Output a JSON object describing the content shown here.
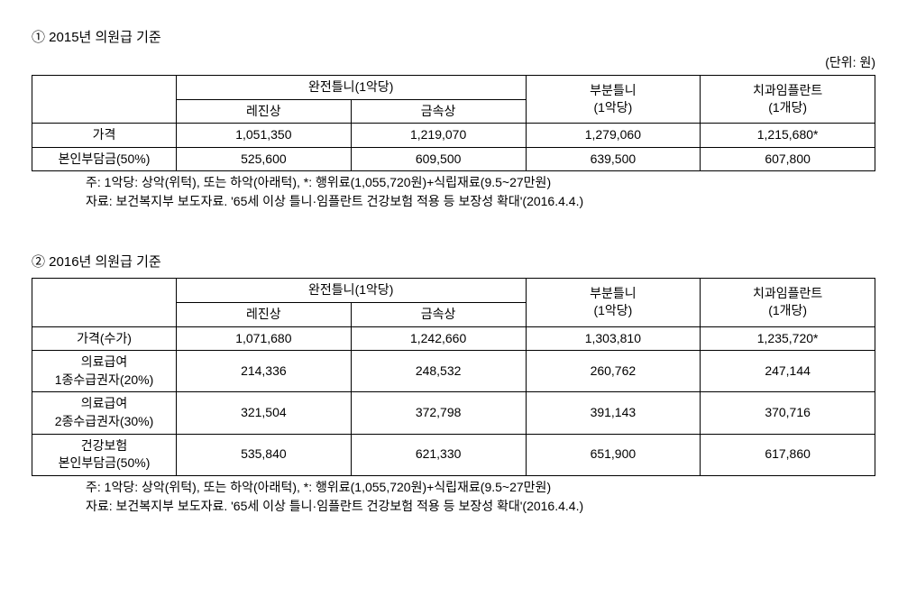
{
  "section1": {
    "title": "① 2015년 의원급 기준",
    "unit": "(단위: 원)",
    "headers": {
      "col_group1": "완전틀니(1악당)",
      "col_sub1": "레진상",
      "col_sub2": "금속상",
      "col2": "부분틀니",
      "col2_sub": "(1악당)",
      "col3": "치과임플란트",
      "col3_sub": "(1개당)"
    },
    "rows": [
      {
        "label": "가격",
        "c1": "1,051,350",
        "c2": "1,219,070",
        "c3": "1,279,060",
        "c4": "1,215,680*"
      },
      {
        "label": "본인부담금(50%)",
        "c1": "525,600",
        "c2": "609,500",
        "c3": "639,500",
        "c4": "607,800"
      }
    ],
    "note": "주: 1악당: 상악(위턱), 또는 하악(아래턱), *: 행위료(1,055,720원)+식립재료(9.5~27만원)",
    "source": "자료: 보건복지부 보도자료. '65세 이상 틀니·임플란트 건강보험 적용 등 보장성 확대'(2016.4.4.)"
  },
  "section2": {
    "title": "② 2016년 의원급 기준",
    "headers": {
      "col_group1": "완전틀니(1악당)",
      "col_sub1": "레진상",
      "col_sub2": "금속상",
      "col2": "부분틀니",
      "col2_sub": "(1악당)",
      "col3": "치과임플란트",
      "col3_sub": "(1개당)"
    },
    "rows": [
      {
        "label": "가격(수가)",
        "c1": "1,071,680",
        "c2": "1,242,660",
        "c3": "1,303,810",
        "c4": "1,235,720*"
      },
      {
        "label": "의료급여\n1종수급권자(20%)",
        "c1": "214,336",
        "c2": "248,532",
        "c3": "260,762",
        "c4": "247,144"
      },
      {
        "label": "의료급여\n2종수급권자(30%)",
        "c1": "321,504",
        "c2": "372,798",
        "c3": "391,143",
        "c4": "370,716"
      },
      {
        "label": "건강보험\n본인부담금(50%)",
        "c1": "535,840",
        "c2": "621,330",
        "c3": "651,900",
        "c4": "617,860"
      }
    ],
    "note": "주: 1악당: 상악(위턱), 또는 하악(아래턱), *: 행위료(1,055,720원)+식립재료(9.5~27만원)",
    "source": "자료: 보건복지부 보도자료. '65세 이상 틀니·임플란트 건강보험 적용 등 보장성 확대'(2016.4.4.)"
  }
}
